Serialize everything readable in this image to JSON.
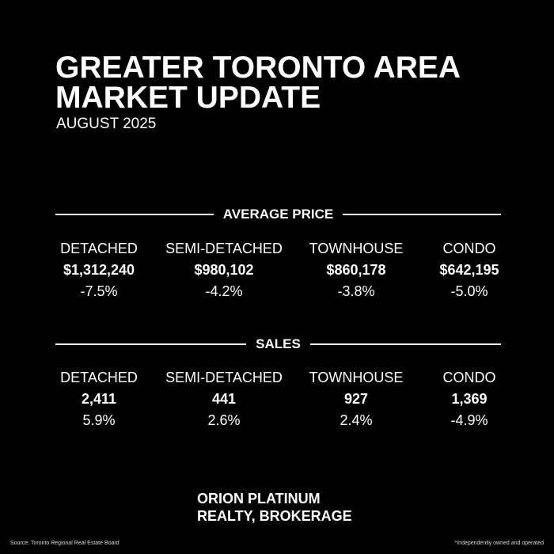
{
  "header": {
    "line1": "GREATER TORONTO AREA",
    "line2": "MARKET UPDATE",
    "subtitle": "AUGUST 2025"
  },
  "average_price": {
    "heading": "AVERAGE PRICE",
    "items": [
      {
        "label": "DETACHED",
        "value": "$1,312,240",
        "change": "-7.5%"
      },
      {
        "label": "SEMI-DETACHED",
        "value": "$980,102",
        "change": "-4.2%"
      },
      {
        "label": "TOWNHOUSE",
        "value": "$860,178",
        "change": "-3.8%"
      },
      {
        "label": "CONDO",
        "value": "$642,195",
        "change": "-5.0%"
      }
    ]
  },
  "sales": {
    "heading": "SALES",
    "items": [
      {
        "label": "DETACHED",
        "value": "2,411",
        "change": "5.9%"
      },
      {
        "label": "SEMI-DETACHED",
        "value": "441",
        "change": "2.6%"
      },
      {
        "label": "TOWNHOUSE",
        "value": "927",
        "change": "2.4%"
      },
      {
        "label": "CONDO",
        "value": "1,369",
        "change": "-4.9%"
      }
    ]
  },
  "brand": {
    "line1": "ORION PLATINUM",
    "line2": "REALTY, BROKERAGE"
  },
  "footer": {
    "source": "Source: Toronto Regional Real Estate Board",
    "note": "*Independently owned and operated"
  }
}
